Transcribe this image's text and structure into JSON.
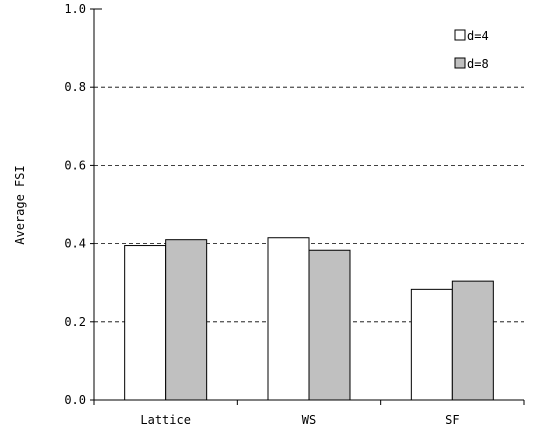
{
  "chart_data": {
    "type": "bar",
    "categories": [
      "Lattice",
      "WS",
      "SF"
    ],
    "series": [
      {
        "name": "d=4",
        "values": [
          0.395,
          0.415,
          0.283
        ],
        "color": "#ffffff"
      },
      {
        "name": "d=8",
        "values": [
          0.41,
          0.383,
          0.304
        ],
        "color": "#c0c0c0"
      }
    ],
    "ylabel": "Average FSI",
    "xlabel": "",
    "ylim": [
      0,
      1.0
    ],
    "yticks": [
      "0.0",
      "0.2",
      "0.4",
      "0.6",
      "0.8",
      "1.0"
    ],
    "grid": "horizontal dashed",
    "legend": "top-right"
  }
}
